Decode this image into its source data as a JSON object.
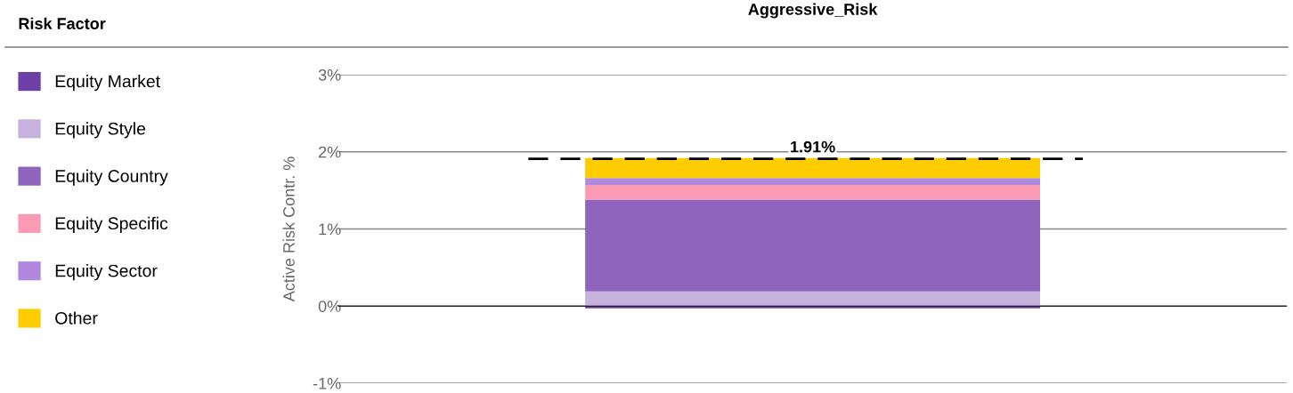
{
  "chart_data": {
    "type": "bar",
    "title": "Aggressive_Risk",
    "ylabel": "Active Risk Contr. %",
    "legend_title": "Risk Factor",
    "categories": [
      null
    ],
    "stacked": true,
    "series": [
      {
        "name": "Equity Market",
        "color": "#6f3fa8",
        "values": [
          -0.03
        ]
      },
      {
        "name": "Equity Style",
        "color": "#c7b2dd",
        "values": [
          0.19
        ]
      },
      {
        "name": "Equity Country",
        "color": "#8e64bc",
        "values": [
          1.19
        ]
      },
      {
        "name": "Equity Specific",
        "color": "#fb9ab4",
        "values": [
          0.19
        ]
      },
      {
        "name": "Equity Sector",
        "color": "#b088e0",
        "values": [
          0.09
        ]
      },
      {
        "name": "Other",
        "color": "#fdcd00",
        "values": [
          0.26
        ]
      }
    ],
    "ylim": [
      -1,
      3
    ],
    "yticks": [
      {
        "value": -1,
        "label": "-1%"
      },
      {
        "value": 0,
        "label": "0%"
      },
      {
        "value": 1,
        "label": "1%"
      },
      {
        "value": 2,
        "label": "2%"
      },
      {
        "value": 3,
        "label": "3%"
      }
    ],
    "grid": "y",
    "legend": "left",
    "ref_lines": [
      {
        "axis": "y",
        "value": 1.91,
        "label": "1.91%",
        "color": "#000000",
        "line_style": "dashed"
      }
    ]
  }
}
